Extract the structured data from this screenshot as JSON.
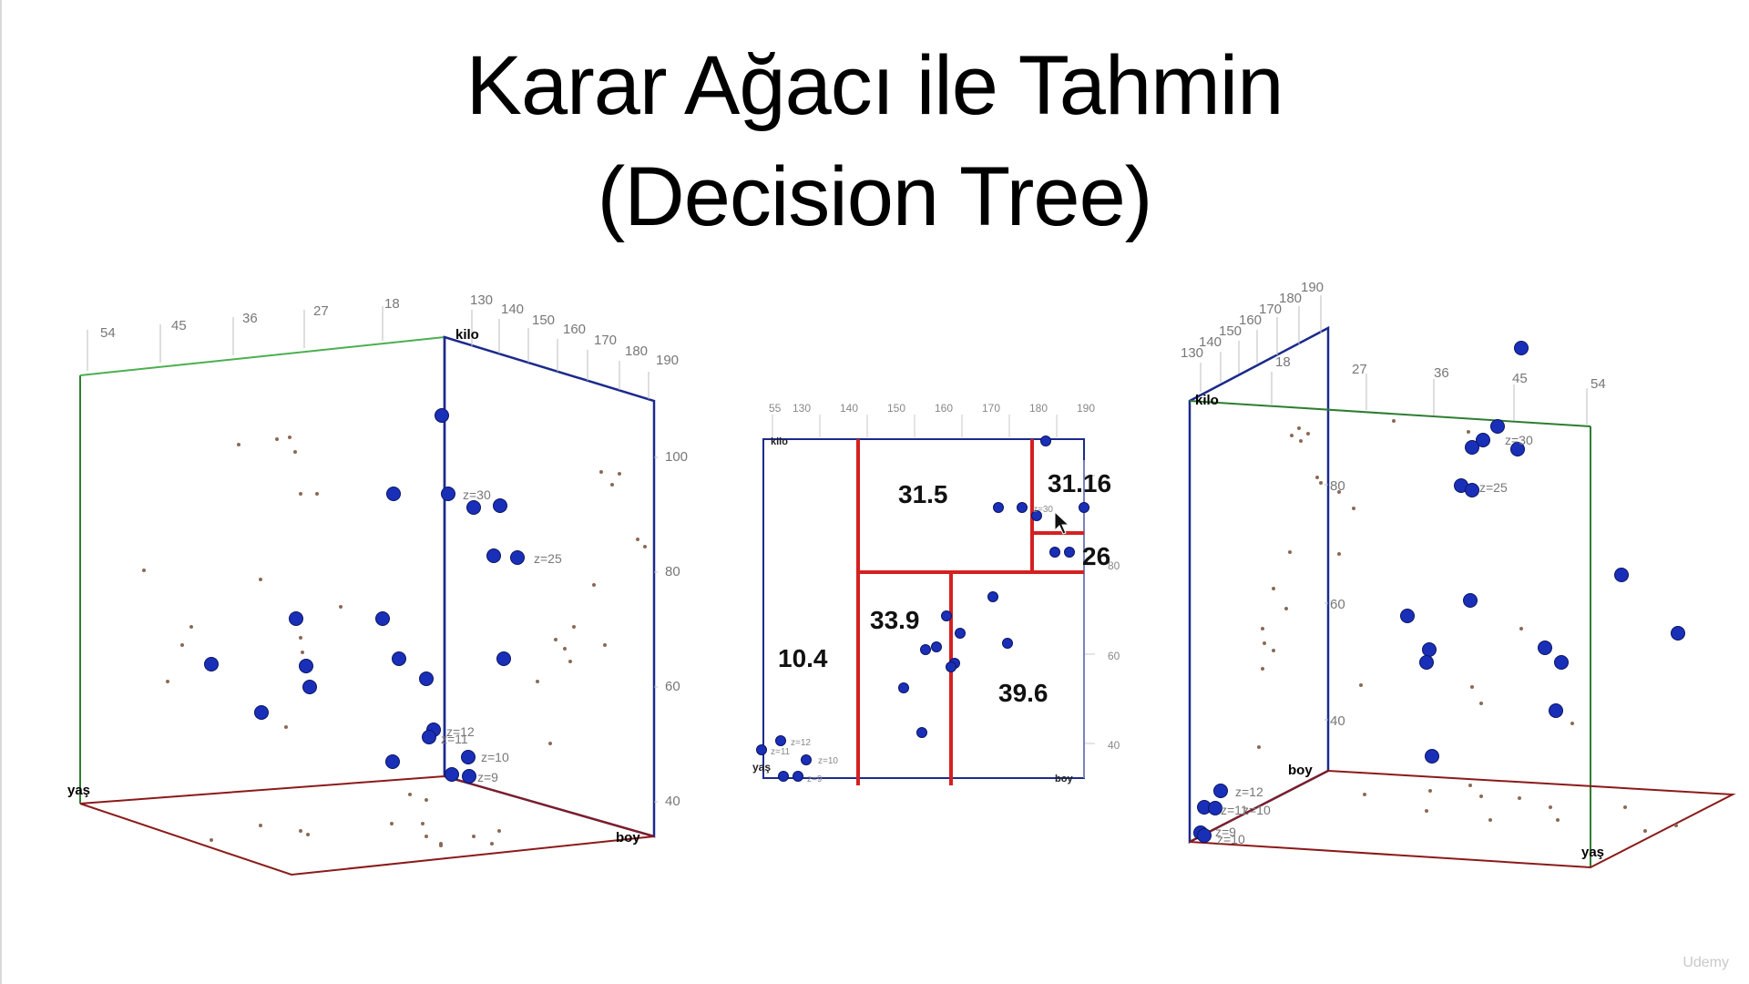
{
  "title": {
    "line1": "Karar Ağacı ile Tahmin",
    "line2": "(Decision Tree)"
  },
  "colors": {
    "point": "#1a2fb8",
    "axis_kilo_plane": "#1c2a8c",
    "axis_yas_plane": "#2e7d32",
    "axis_floor": "#8b1a1a",
    "split_line": "#d42020",
    "tick": "#9a9a9a"
  },
  "axis_labels": {
    "kilo": "kilo",
    "boy": "boy",
    "yas": "yaş"
  },
  "left_chart": {
    "yas_ticks": [
      "54",
      "45",
      "36",
      "27",
      "18"
    ],
    "boy_ticks": [
      "130",
      "140",
      "150",
      "160",
      "170",
      "180",
      "190"
    ],
    "kilo_ticks": [
      "100",
      "80",
      "60",
      "40"
    ],
    "point_labels": [
      "z=30",
      "z=25",
      "z=12",
      "z=11",
      "z=10",
      "z=9"
    ]
  },
  "center_chart": {
    "boy_ticks": [
      "55",
      "130",
      "140",
      "150",
      "160",
      "170",
      "180",
      "190"
    ],
    "kilo_ticks": [
      "80",
      "60",
      "40"
    ],
    "region_values": [
      "31.5",
      "31.16",
      "26",
      "33.9",
      "10.4",
      "39.6"
    ],
    "point_labels": [
      "z=30",
      "z=12",
      "z=11",
      "z=10",
      "z=9"
    ]
  },
  "right_chart": {
    "boy_ticks": [
      "130",
      "140",
      "150",
      "160",
      "170",
      "180",
      "190"
    ],
    "yas_ticks": [
      "18",
      "27",
      "36",
      "45",
      "54"
    ],
    "kilo_ticks": [
      "80",
      "60",
      "40"
    ],
    "point_labels": [
      "z=30",
      "z=25",
      "z=12",
      "z=11",
      "z=10",
      "z=9",
      "z=10"
    ]
  },
  "watermark": "Udemy"
}
